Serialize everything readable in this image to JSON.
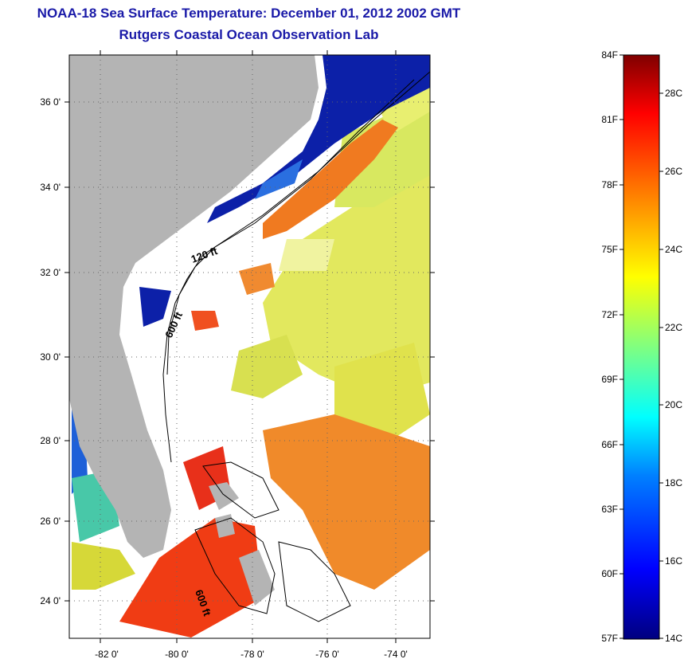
{
  "title": "NOAA-18 Sea Surface Temperature:  December 01, 2012 2002 GMT",
  "subtitle": "Rutgers Coastal Ocean Observation Lab",
  "map": {
    "lat_labels": [
      "36 0'",
      "34 0'",
      "32 0'",
      "30 0'",
      "28 0'",
      "26 0'",
      "24 0'"
    ],
    "lon_labels": [
      "-82 0'",
      "-80 0'",
      "-78 0'",
      "-76 0'",
      "-74 0'"
    ],
    "contour_labels": [
      "120 ft",
      "600 ft",
      "600 ft"
    ],
    "colors": {
      "land": "#b4b4b4",
      "cloud": "#ffffff",
      "cold_shelf": "#0a1fa8",
      "gulf_stream": "#f06a1c",
      "offshore": "#e6e85a"
    }
  },
  "colorbar": {
    "f_labels": [
      "84F",
      "81F",
      "78F",
      "75F",
      "72F",
      "69F",
      "66F",
      "63F",
      "60F",
      "57F"
    ],
    "c_labels": [
      "28C",
      "26C",
      "24C",
      "22C",
      "20C",
      "18C",
      "16C",
      "14C"
    ],
    "colors": [
      "#00007f",
      "#0000ff",
      "#0080ff",
      "#00ffff",
      "#80ff80",
      "#ffff00",
      "#ff8000",
      "#ff0000",
      "#7f0000"
    ]
  }
}
